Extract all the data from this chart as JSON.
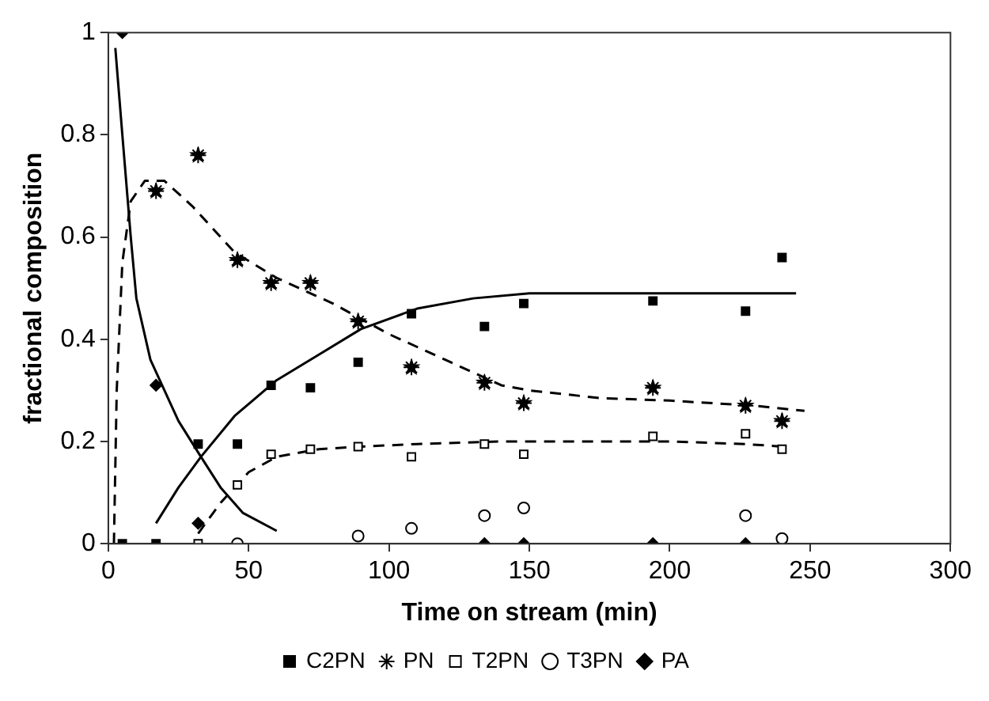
{
  "chart_data": {
    "type": "scatter",
    "xlabel": "Time on stream (min)",
    "ylabel": "fractional composition",
    "xlim": [
      0,
      300
    ],
    "xticks": [
      0,
      50,
      100,
      150,
      200,
      250,
      300
    ],
    "ylim": [
      0,
      1
    ],
    "yticks": [
      0,
      0.2,
      0.4,
      0.6,
      0.8,
      1
    ],
    "grid": false,
    "legend": "bottom",
    "series": [
      {
        "name": "C2PN",
        "color": "#000000",
        "marker": "square",
        "x": [
          5,
          17,
          32,
          46,
          58,
          72,
          89,
          108,
          134,
          148,
          194,
          227,
          240
        ],
        "values": [
          0,
          0,
          0.195,
          0.195,
          0.31,
          0.305,
          0.355,
          0.45,
          0.425,
          0.47,
          0.475,
          0.455,
          0.56
        ]
      },
      {
        "name": "PN",
        "color": "#000000",
        "marker": "star",
        "x": [
          17,
          32,
          46,
          58,
          72,
          89,
          108,
          134,
          148,
          194,
          227,
          240
        ],
        "values": [
          0.69,
          0.76,
          0.555,
          0.51,
          0.51,
          0.435,
          0.345,
          0.315,
          0.275,
          0.305,
          0.27,
          0.24
        ]
      },
      {
        "name": "T2PN",
        "color": "#000000",
        "marker": "square",
        "x": [
          32,
          46,
          58,
          72,
          89,
          108,
          134,
          148,
          194,
          227,
          240
        ],
        "values": [
          0,
          0.115,
          0.175,
          0.185,
          0.19,
          0.17,
          0.195,
          0.175,
          0.21,
          0.215,
          0.185
        ]
      },
      {
        "name": "T3PN",
        "color": "#000000",
        "marker": "circle",
        "x": [
          46,
          89,
          108,
          134,
          148,
          227,
          240
        ],
        "values": [
          0,
          0.015,
          0.03,
          0.055,
          0.07,
          0.055,
          0.01
        ]
      },
      {
        "name": "PA",
        "color": "#000000",
        "marker": "diamond",
        "x": [
          5,
          17,
          32,
          134,
          148,
          194,
          227
        ],
        "values": [
          1,
          0.31,
          0.04,
          0,
          0,
          0,
          0
        ]
      },
      {
        "type": "line",
        "color": "#000000",
        "line_style": "solid",
        "x": [
          2.5,
          5,
          8,
          10,
          15,
          20,
          25,
          33,
          40,
          48,
          60
        ],
        "values": [
          0.97,
          0.8,
          0.6,
          0.48,
          0.36,
          0.3,
          0.24,
          0.17,
          0.11,
          0.06,
          0.025
        ]
      },
      {
        "type": "line",
        "color": "#000000",
        "line_style": "solid",
        "x": [
          17,
          25,
          33,
          45,
          60,
          75,
          90,
          110,
          130,
          150,
          200,
          245
        ],
        "values": [
          0.04,
          0.11,
          0.17,
          0.25,
          0.32,
          0.37,
          0.42,
          0.46,
          0.48,
          0.49,
          0.49,
          0.49
        ]
      },
      {
        "type": "line",
        "color": "#000000",
        "line_style": "dashed",
        "x": [
          2,
          3,
          5,
          8,
          13,
          20,
          30,
          45,
          60,
          80,
          100,
          120,
          140,
          150,
          175,
          200,
          230,
          248
        ],
        "values": [
          0,
          0.3,
          0.55,
          0.67,
          0.71,
          0.71,
          0.66,
          0.57,
          0.52,
          0.47,
          0.41,
          0.36,
          0.31,
          0.3,
          0.285,
          0.28,
          0.27,
          0.26
        ]
      },
      {
        "type": "line",
        "color": "#000000",
        "line_style": "dashed",
        "x": [
          32,
          40,
          50,
          60,
          75,
          90,
          110,
          140,
          200,
          227,
          240
        ],
        "values": [
          0.02,
          0.08,
          0.14,
          0.17,
          0.185,
          0.19,
          0.195,
          0.2,
          0.2,
          0.195,
          0.19
        ]
      }
    ]
  }
}
